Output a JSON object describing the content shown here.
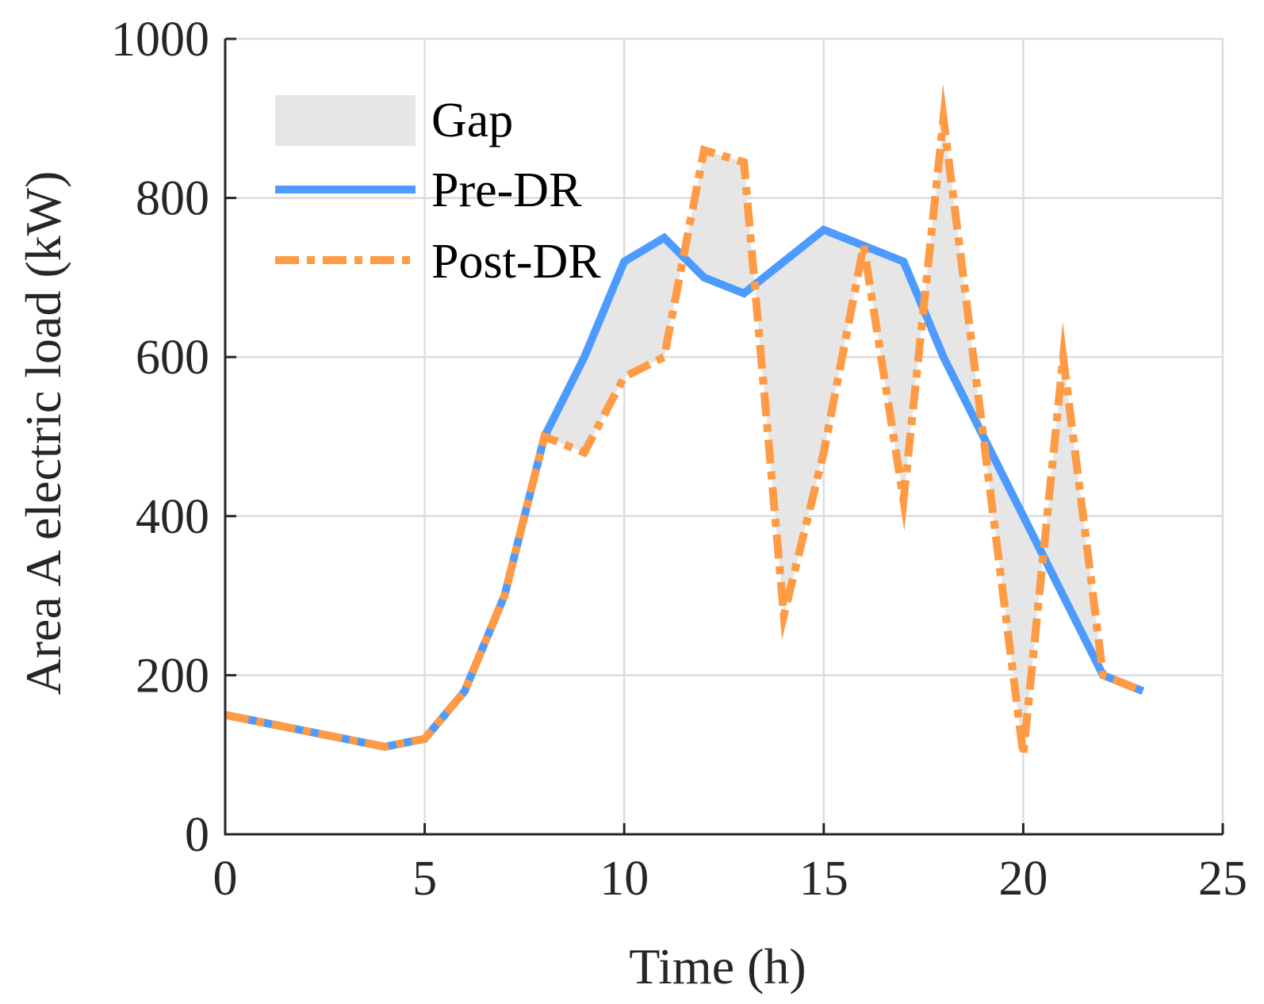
{
  "chart_data": {
    "type": "line",
    "xlabel": "Time (h)",
    "ylabel": "Area A electric load (kW)",
    "xlim": [
      0,
      25
    ],
    "ylim": [
      0,
      1000
    ],
    "xticks": [
      0,
      5,
      10,
      15,
      20,
      25
    ],
    "yticks": [
      0,
      200,
      400,
      600,
      800,
      1000
    ],
    "grid": true,
    "legend_position": "top-left",
    "x": [
      0,
      1,
      2,
      3,
      4,
      5,
      6,
      7,
      8,
      9,
      10,
      11,
      12,
      13,
      14,
      15,
      16,
      17,
      18,
      19,
      20,
      21,
      22,
      23
    ],
    "series": [
      {
        "name": "Pre-DR",
        "style": "solid",
        "color": "#4d9bff",
        "values": [
          150,
          140,
          130,
          120,
          110,
          120,
          180,
          300,
          500,
          600,
          720,
          750,
          700,
          680,
          720,
          760,
          740,
          720,
          600,
          500,
          400,
          300,
          200,
          180
        ]
      },
      {
        "name": "Post-DR",
        "style": "dash-dot",
        "color": "#ff9a45",
        "values": [
          150,
          140,
          130,
          120,
          110,
          120,
          180,
          300,
          500,
          480,
          575,
          600,
          860,
          845,
          275,
          480,
          740,
          420,
          900,
          500,
          100,
          600,
          200,
          180
        ]
      }
    ],
    "fill": {
      "name": "Gap",
      "color": "#e6e6e6",
      "between": [
        "Pre-DR",
        "Post-DR"
      ]
    }
  }
}
